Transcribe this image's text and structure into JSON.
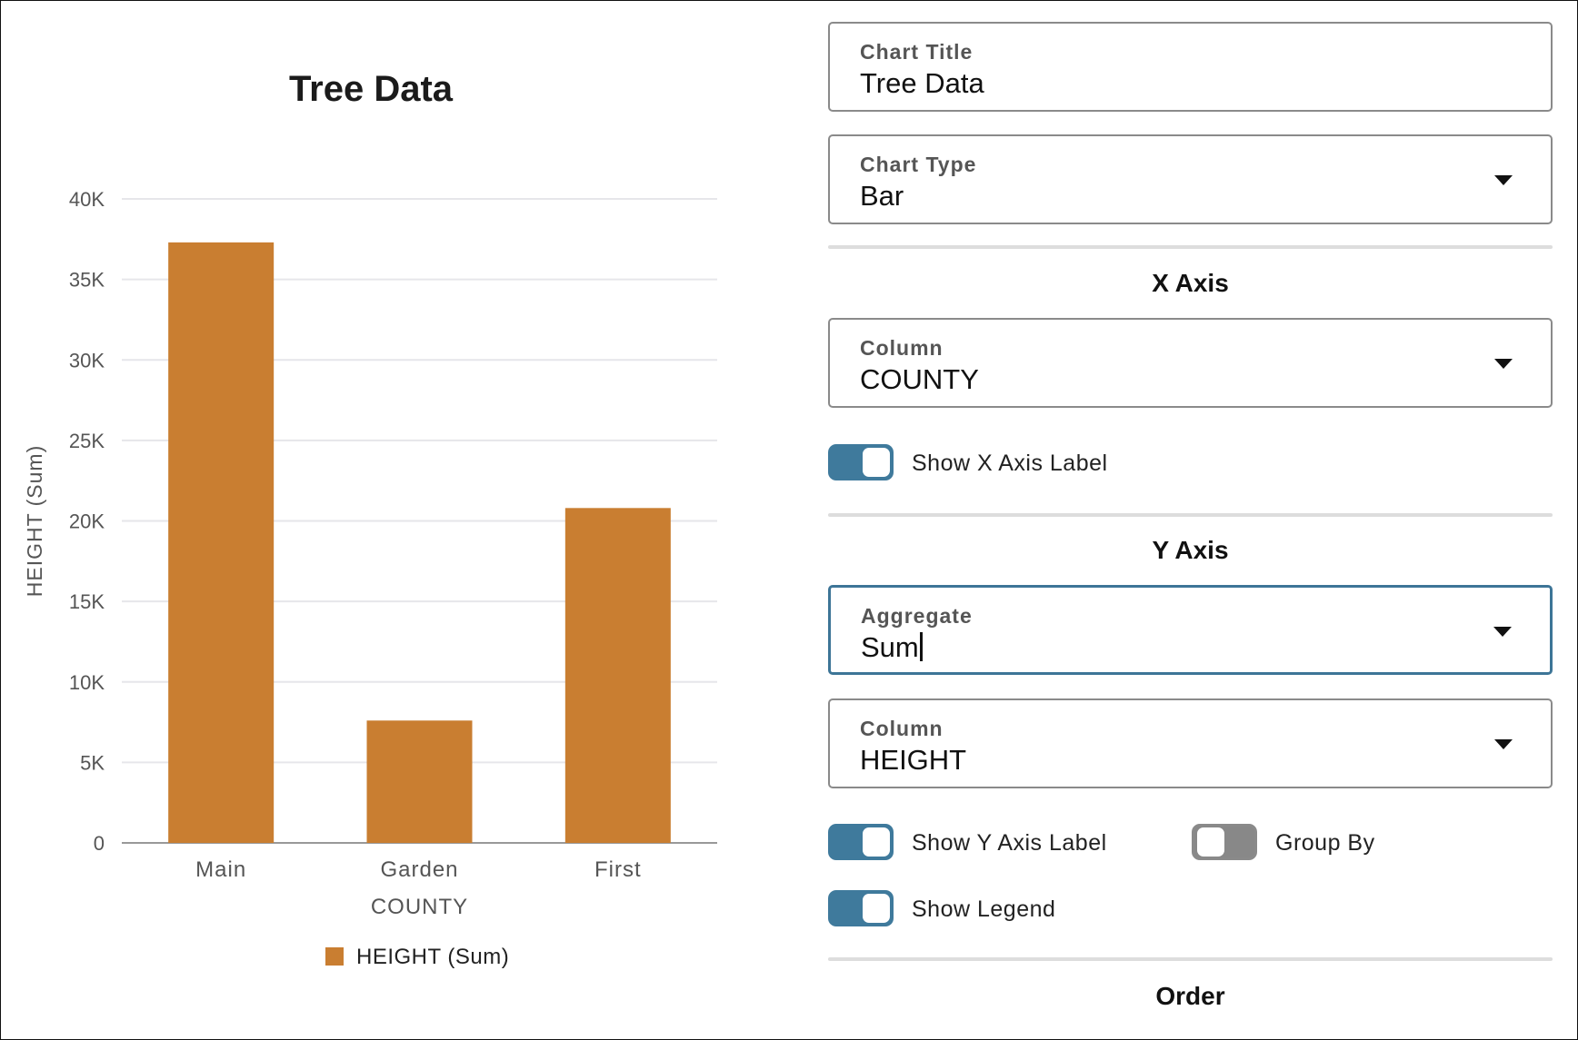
{
  "chart": {
    "title": "Tree Data"
  },
  "chart_data": {
    "type": "bar",
    "title": "Tree Data",
    "categories": [
      "Main",
      "Garden",
      "First"
    ],
    "series": [
      {
        "name": "HEIGHT (Sum)",
        "values": [
          37300,
          7600,
          20800
        ]
      }
    ],
    "xlabel": "COUNTY",
    "ylabel": "HEIGHT (Sum)",
    "ylim": [
      0,
      40000
    ],
    "yticks": [
      "0",
      "5K",
      "10K",
      "15K",
      "20K",
      "25K",
      "30K",
      "35K",
      "40K"
    ],
    "grid": true,
    "legend": "bottom",
    "color": "#c97e31"
  },
  "settings": {
    "chart_title": {
      "label": "Chart Title",
      "value": "Tree Data"
    },
    "chart_type": {
      "label": "Chart Type",
      "value": "Bar"
    },
    "x_axis": {
      "heading": "X Axis",
      "column": {
        "label": "Column",
        "value": "COUNTY"
      },
      "show_label": {
        "label": "Show X Axis Label",
        "on": true
      }
    },
    "y_axis": {
      "heading": "Y Axis",
      "aggregate": {
        "label": "Aggregate",
        "value": "Sum"
      },
      "column": {
        "label": "Column",
        "value": "HEIGHT"
      },
      "show_label": {
        "label": "Show Y Axis Label",
        "on": true
      },
      "group_by": {
        "label": "Group By",
        "on": false
      },
      "show_legend": {
        "label": "Show Legend",
        "on": true
      }
    },
    "order": {
      "heading": "Order"
    }
  },
  "colors": {
    "accent": "#3f7a9c",
    "bar": "#c97e31",
    "toggle_off": "#888888"
  }
}
